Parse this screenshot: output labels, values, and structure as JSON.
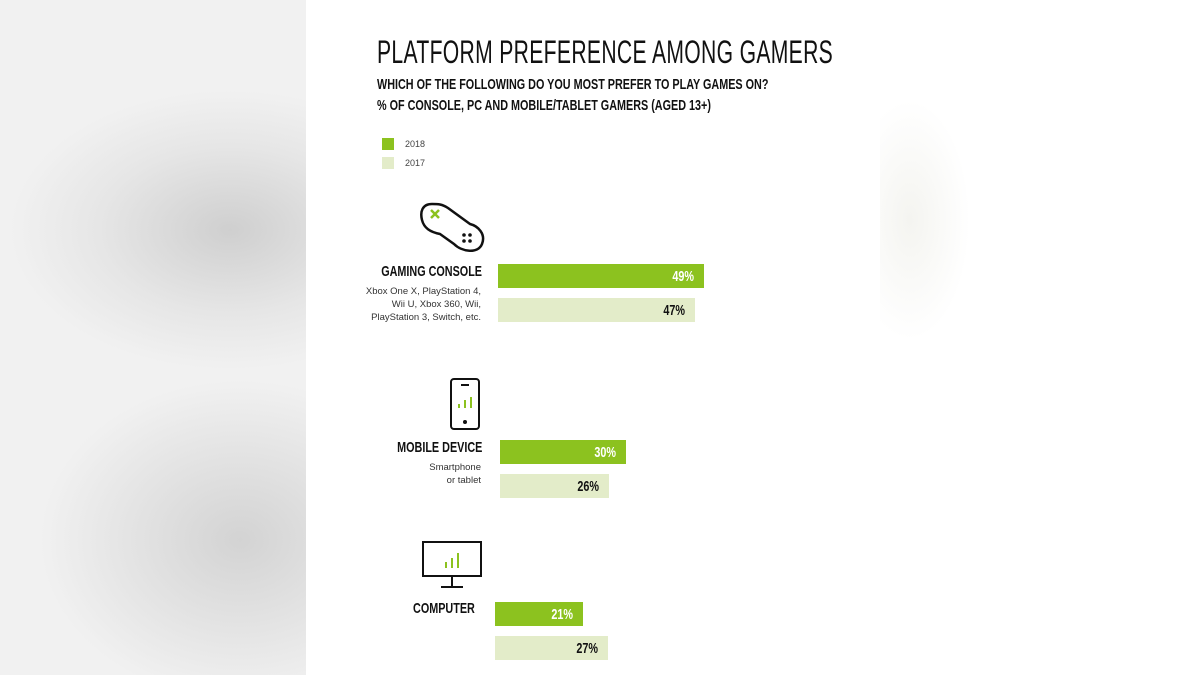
{
  "colors": {
    "y2018": "#8cc21f",
    "y2017": "#e3ecc9",
    "text": "#111111"
  },
  "chart_data": {
    "type": "bar",
    "orientation": "horizontal",
    "title": "PLATFORM PREFERENCE AMONG GAMERS",
    "subtitle": "WHICH OF THE FOLLOWING DO YOU MOST PREFER TO PLAY GAMES ON?",
    "subtitle2": "% OF CONSOLE, PC AND MOBILE/TABLET GAMERS (AGED 13+)",
    "legend": [
      "2018",
      "2017"
    ],
    "legend_position": "top-left",
    "categories": [
      {
        "name": "GAMING CONSOLE",
        "description": [
          "Xbox One X, PlayStation 4,",
          "Wii U, Xbox 360, Wii,",
          "PlayStation 3, Switch, etc."
        ],
        "icon": "gamepad-icon"
      },
      {
        "name": "MOBILE DEVICE",
        "description": [
          "Smartphone",
          "or tablet"
        ],
        "icon": "smartphone-icon"
      },
      {
        "name": "COMPUTER",
        "description": [],
        "icon": "monitor-icon"
      }
    ],
    "series": [
      {
        "name": "2018",
        "values": [
          49,
          30,
          21
        ],
        "labels": [
          "49%",
          "30%",
          "21%"
        ]
      },
      {
        "name": "2017",
        "values": [
          47,
          26,
          27
        ],
        "labels": [
          "47%",
          "26%",
          "27%"
        ]
      }
    ],
    "grid": false
  }
}
